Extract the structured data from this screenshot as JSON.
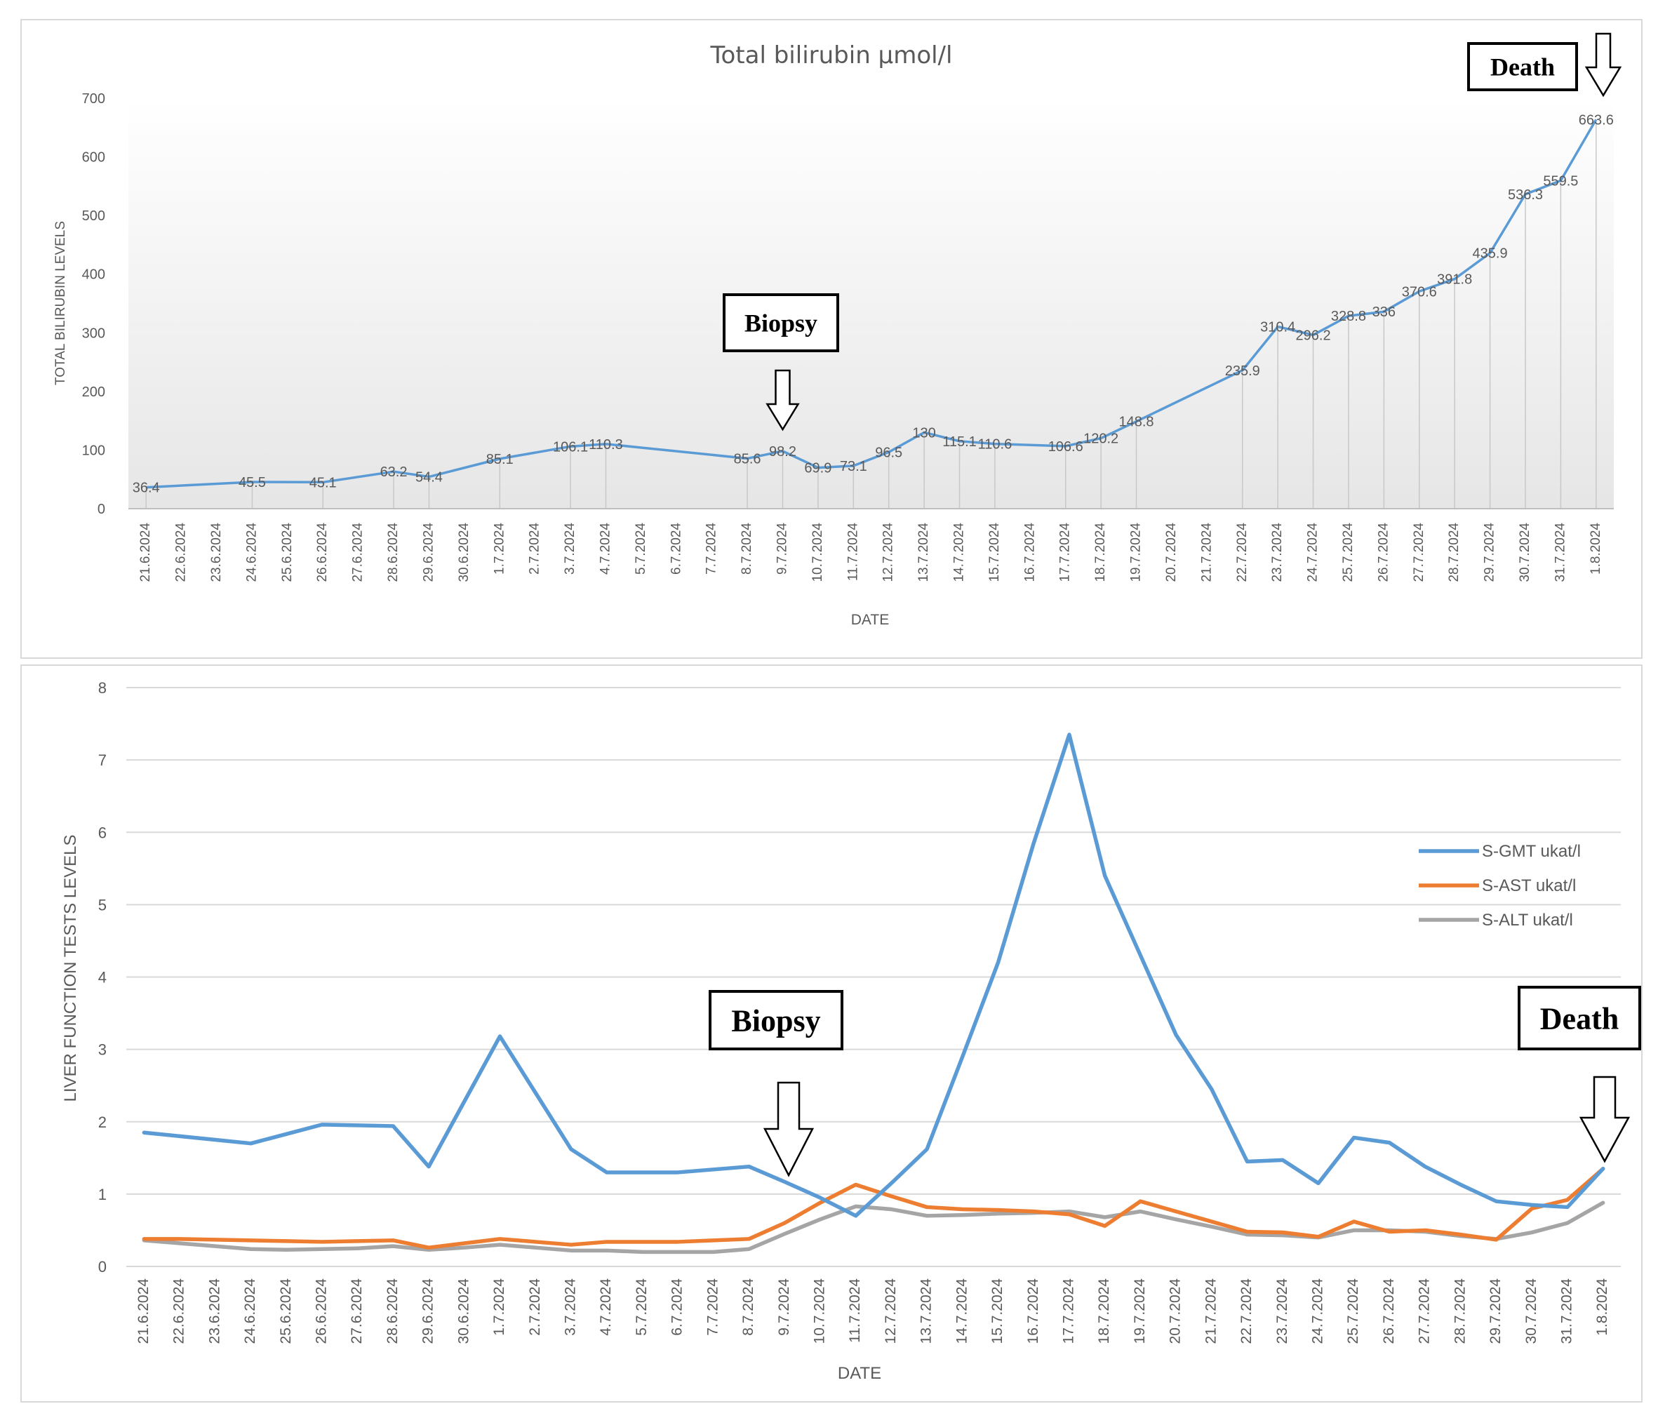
{
  "colors": {
    "gmt": "#5B9BD5",
    "ast": "#ED7D31",
    "alt": "#A5A5A5",
    "text": "#595959",
    "grid": "#D9D9D9"
  },
  "chart_data": [
    {
      "type": "line",
      "title": "Total bilirubin µmol/l",
      "xlabel": "DATE",
      "ylabel": "TOTAL BILIRUBIN LEVELS",
      "ylim": [
        0,
        700
      ],
      "yticks": [
        0,
        100,
        200,
        300,
        400,
        500,
        600,
        700
      ],
      "categories": [
        "21.6.2024",
        "22.6.2024",
        "23.6.2024",
        "24.6.2024",
        "25.6.2024",
        "26.6.2024",
        "27.6.2024",
        "28.6.2024",
        "29.6.2024",
        "30.6.2024",
        "1.7.2024",
        "2.7.2024",
        "3.7.2024",
        "4.7.2024",
        "5.7.2024",
        "6.7.2024",
        "7.7.2024",
        "8.7.2024",
        "9.7.2024",
        "10.7.2024",
        "11.7.2024",
        "12.7.2024",
        "13.7.2024",
        "14.7.2024",
        "15.7.2024",
        "16.7.2024",
        "17.7.2024",
        "18.7.2024",
        "19.7.2024",
        "20.7.2024",
        "21.7.2024",
        "22.7.2024",
        "23.7.2024",
        "24.7.2024",
        "25.7.2024",
        "26.7.2024",
        "27.7.2024",
        "28.7.2024",
        "29.7.2024",
        "30.7.2024",
        "31.7.2024",
        "1.8.2024"
      ],
      "points": [
        {
          "x": "21.6.2024",
          "y": 36.4,
          "label": "36.4"
        },
        {
          "x": "24.6.2024",
          "y": 45.5,
          "label": "45.5"
        },
        {
          "x": "26.6.2024",
          "y": 45.1,
          "label": "45.1"
        },
        {
          "x": "28.6.2024",
          "y": 63.2,
          "label": "63.2"
        },
        {
          "x": "29.6.2024",
          "y": 54.4,
          "label": "54.4"
        },
        {
          "x": "1.7.2024",
          "y": 85.1,
          "label": "85.1"
        },
        {
          "x": "3.7.2024",
          "y": 106.1,
          "label": "106.1"
        },
        {
          "x": "4.7.2024",
          "y": 110.3,
          "label": "110.3"
        },
        {
          "x": "8.7.2024",
          "y": 85.6,
          "label": "85.6"
        },
        {
          "x": "9.7.2024",
          "y": 98.2,
          "label": "98.2"
        },
        {
          "x": "10.7.2024",
          "y": 69.9,
          "label": "69.9"
        },
        {
          "x": "11.7.2024",
          "y": 73.1,
          "label": "73.1"
        },
        {
          "x": "12.7.2024",
          "y": 96.5,
          "label": "96.5"
        },
        {
          "x": "13.7.2024",
          "y": 130,
          "label": "130"
        },
        {
          "x": "14.7.2024",
          "y": 115.1,
          "label": "115.1"
        },
        {
          "x": "15.7.2024",
          "y": 110.6,
          "label": "110.6"
        },
        {
          "x": "17.7.2024",
          "y": 106.6,
          "label": "106.6"
        },
        {
          "x": "18.7.2024",
          "y": 120.2,
          "label": "120.2"
        },
        {
          "x": "19.7.2024",
          "y": 148.8,
          "label": "148.8"
        },
        {
          "x": "22.7.2024",
          "y": 235.9,
          "label": "235.9"
        },
        {
          "x": "23.7.2024",
          "y": 310.4,
          "label": "310.4"
        },
        {
          "x": "24.7.2024",
          "y": 296.2,
          "label": "296.2"
        },
        {
          "x": "25.7.2024",
          "y": 328.8,
          "label": "328.8"
        },
        {
          "x": "26.7.2024",
          "y": 336,
          "label": "336"
        },
        {
          "x": "27.7.2024",
          "y": 370.6,
          "label": "370.6"
        },
        {
          "x": "28.7.2024",
          "y": 391.8,
          "label": "391.8"
        },
        {
          "x": "29.7.2024",
          "y": 435.9,
          "label": "435.9"
        },
        {
          "x": "30.7.2024",
          "y": 536.3,
          "label": "536.3"
        },
        {
          "x": "31.7.2024",
          "y": 559.5,
          "label": "559.5"
        },
        {
          "x": "1.8.2024",
          "y": 663.6,
          "label": "663.6"
        }
      ],
      "annotations": [
        {
          "text": "Biopsy",
          "x": "9.7.2024"
        },
        {
          "text": "Death",
          "x": "1.8.2024"
        }
      ]
    },
    {
      "type": "line",
      "title": "",
      "xlabel": "DATE",
      "ylabel": "LIVER FUNCTION TESTS LEVELS",
      "ylim": [
        0,
        8
      ],
      "yticks": [
        0,
        1,
        2,
        3,
        4,
        5,
        6,
        7,
        8
      ],
      "legend_position": "right",
      "categories": [
        "21.6.2024",
        "22.6.2024",
        "23.6.2024",
        "24.6.2024",
        "25.6.2024",
        "26.6.2024",
        "27.6.2024",
        "28.6.2024",
        "29.6.2024",
        "30.6.2024",
        "1.7.2024",
        "2.7.2024",
        "3.7.2024",
        "4.7.2024",
        "5.7.2024",
        "6.7.2024",
        "7.7.2024",
        "8.7.2024",
        "9.7.2024",
        "10.7.2024",
        "11.7.2024",
        "12.7.2024",
        "13.7.2024",
        "14.7.2024",
        "15.7.2024",
        "16.7.2024",
        "17.7.2024",
        "18.7.2024",
        "19.7.2024",
        "20.7.2024",
        "21.7.2024",
        "22.7.2024",
        "23.7.2024",
        "24.7.2024",
        "25.7.2024",
        "26.7.2024",
        "27.7.2024",
        "28.7.2024",
        "29.7.2024",
        "30.7.2024",
        "31.7.2024",
        "1.8.2024"
      ],
      "series": [
        {
          "name": "S-GMT ukat/l",
          "color": "#5B9BD5",
          "values": [
            1.85,
            1.8,
            1.75,
            1.7,
            1.83,
            1.96,
            1.95,
            1.94,
            1.38,
            2.28,
            3.18,
            2.4,
            1.62,
            1.3,
            1.3,
            1.3,
            1.34,
            1.38,
            1.17,
            0.95,
            0.7,
            1.15,
            1.62,
            2.9,
            4.2,
            5.85,
            7.35,
            5.4,
            4.3,
            3.2,
            2.45,
            1.45,
            1.47,
            1.15,
            1.78,
            1.71,
            1.38,
            1.13,
            0.9,
            0.85,
            0.82,
            1.35
          ]
        },
        {
          "name": "S-AST ukat/l",
          "color": "#ED7D31",
          "values": [
            0.38,
            0.38,
            0.37,
            0.36,
            0.35,
            0.34,
            0.35,
            0.36,
            0.26,
            0.32,
            0.38,
            0.34,
            0.3,
            0.34,
            0.34,
            0.34,
            0.36,
            0.38,
            0.6,
            0.88,
            1.13,
            0.97,
            0.82,
            0.79,
            0.78,
            0.76,
            0.72,
            0.56,
            0.9,
            0.76,
            0.62,
            0.48,
            0.47,
            0.41,
            0.62,
            0.48,
            0.5,
            0.44,
            0.37,
            0.8,
            0.92,
            1.35
          ]
        },
        {
          "name": "S-ALT ukat/l",
          "color": "#A5A5A5",
          "values": [
            0.36,
            0.32,
            0.28,
            0.24,
            0.23,
            0.24,
            0.25,
            0.28,
            0.23,
            0.26,
            0.3,
            0.26,
            0.22,
            0.22,
            0.2,
            0.2,
            0.2,
            0.24,
            0.45,
            0.65,
            0.83,
            0.79,
            0.7,
            0.71,
            0.73,
            0.74,
            0.76,
            0.68,
            0.76,
            0.65,
            0.55,
            0.44,
            0.43,
            0.4,
            0.5,
            0.5,
            0.48,
            0.42,
            0.38,
            0.47,
            0.6,
            0.88
          ]
        }
      ],
      "annotations": [
        {
          "text": "Biopsy",
          "x": "9.7.2024"
        },
        {
          "text": "Death",
          "x": "1.8.2024"
        }
      ]
    }
  ]
}
